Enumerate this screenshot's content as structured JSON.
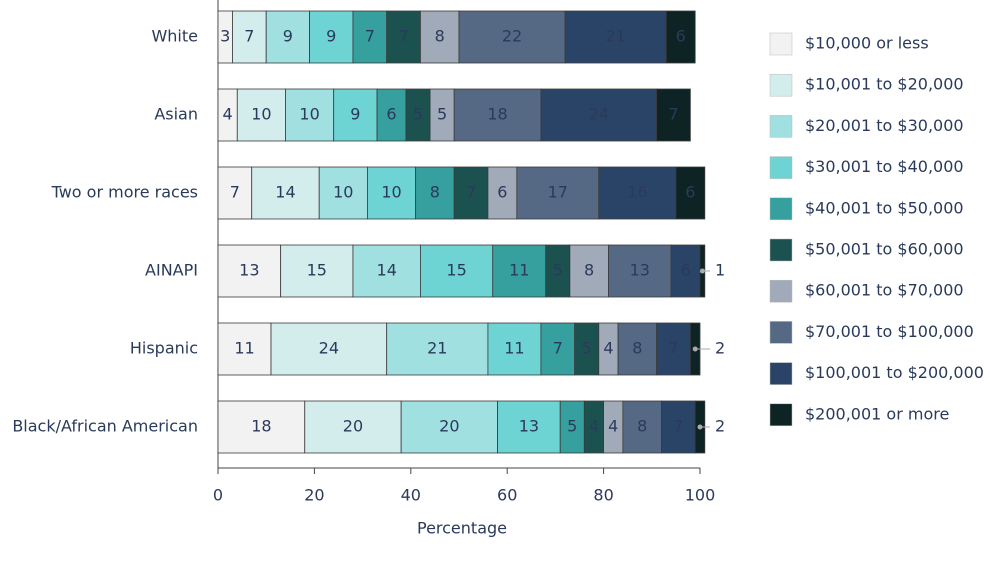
{
  "chart_data": {
    "type": "stacked-bar-horizontal",
    "x_label": "Percentage",
    "categories": [
      "White",
      "Asian",
      "Two or more races",
      "AINAPI",
      "Hispanic",
      "Black/African American"
    ],
    "series": [
      {
        "name": "$10,000 or less",
        "color": "#f2f2f2",
        "values": [
          3,
          4,
          7,
          13,
          11,
          18
        ]
      },
      {
        "name": "$10,001 to $20,000",
        "color": "#d3ecec",
        "values": [
          7,
          10,
          14,
          15,
          24,
          20
        ]
      },
      {
        "name": "$20,001 to $30,000",
        "color": "#a0e0e0",
        "values": [
          9,
          10,
          10,
          14,
          21,
          20
        ]
      },
      {
        "name": "$30,001 to $40,000",
        "color": "#6dd3d3",
        "values": [
          9,
          9,
          10,
          15,
          11,
          13
        ]
      },
      {
        "name": "$40,001 to $50,000",
        "color": "#35a09e",
        "values": [
          7,
          6,
          8,
          11,
          7,
          5
        ]
      },
      {
        "name": "$50,001 to $60,000",
        "color": "#1b5250",
        "values": [
          7,
          5,
          7,
          5,
          5,
          4
        ]
      },
      {
        "name": "$60,001 to $70,000",
        "color": "#a0aab8",
        "values": [
          8,
          5,
          6,
          8,
          4,
          4
        ]
      },
      {
        "name": "$70,001 to $100,000",
        "color": "#566984",
        "values": [
          22,
          18,
          17,
          13,
          8,
          8
        ]
      },
      {
        "name": "$100,001 to $200,000",
        "color": "#2a4468",
        "values": [
          21,
          24,
          16,
          6,
          7,
          7
        ]
      },
      {
        "name": "$200,001 or more",
        "color": "#0e2424",
        "values": [
          6,
          7,
          6,
          1,
          2,
          2
        ]
      }
    ],
    "xlim": [
      0,
      100
    ],
    "xticks": [
      0,
      20,
      40,
      60,
      80,
      100
    ]
  }
}
